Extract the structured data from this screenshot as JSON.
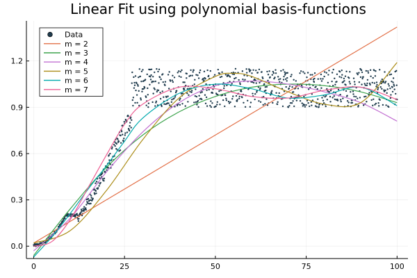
{
  "chart_data": {
    "type": "scatter",
    "title": "Linear Fit using polynomial basis-functions",
    "xlabel": "",
    "ylabel": "",
    "xlim": [
      -2,
      103
    ],
    "ylim": [
      -0.08,
      1.46
    ],
    "x_ticks": [
      0,
      25,
      50,
      75,
      100
    ],
    "x_tick_labels": [
      "0",
      "25",
      "50",
      "75",
      "100"
    ],
    "y_ticks": [
      0.0,
      0.3,
      0.6,
      0.9,
      1.2
    ],
    "y_tick_labels": [
      "0.0",
      "0.3",
      "0.6",
      "0.9",
      "1.2"
    ],
    "grid": true,
    "legend_position": "top-left",
    "scatter": {
      "name": "Data",
      "color": "#1f3b4d",
      "x_range": [
        0,
        100
      ],
      "n_points": 1000,
      "generator": "plateau-with-noise",
      "plateau_levels": [
        0.9,
        1.15
      ]
    },
    "series": [
      {
        "name": "m = 2",
        "color": "#e26f46",
        "x": [
          0,
          100
        ],
        "y": [
          0.02,
          1.42
        ]
      },
      {
        "name": "m = 3",
        "color": "#3da44d",
        "x": [
          0,
          10,
          20,
          30,
          40,
          50,
          60,
          70,
          80,
          90,
          100
        ],
        "y": [
          -0.06,
          0.24,
          0.51,
          0.72,
          0.87,
          0.97,
          1.03,
          1.05,
          1.04,
          1.0,
          0.93
        ]
      },
      {
        "name": "m = 4",
        "color": "#c271d2",
        "x": [
          0,
          10,
          20,
          30,
          40,
          50,
          60,
          70,
          80,
          90,
          100
        ],
        "y": [
          -0.03,
          0.18,
          0.48,
          0.74,
          0.93,
          1.04,
          1.07,
          1.05,
          1.0,
          0.93,
          0.81
        ]
      },
      {
        "name": "m = 5",
        "color": "#ac8d18",
        "x": [
          0,
          10,
          20,
          30,
          40,
          50,
          55,
          60,
          70,
          80,
          90,
          100
        ],
        "y": [
          0.02,
          0.1,
          0.36,
          0.69,
          0.96,
          1.1,
          1.12,
          1.1,
          1.0,
          0.92,
          0.93,
          1.19
        ]
      },
      {
        "name": "m = 6",
        "color": "#00a9ad",
        "x": [
          0,
          5,
          10,
          15,
          20,
          25,
          30,
          40,
          50,
          60,
          70,
          80,
          90,
          100
        ],
        "y": [
          -0.07,
          0.06,
          0.21,
          0.37,
          0.52,
          0.68,
          0.83,
          0.99,
          1.05,
          1.02,
          0.96,
          0.98,
          1.03,
          0.91
        ]
      },
      {
        "name": "m = 7",
        "color": "#ed5d92",
        "x": [
          0,
          5,
          10,
          15,
          20,
          25,
          30,
          40,
          50,
          60,
          70,
          80,
          90,
          100
        ],
        "y": [
          0.0,
          0.03,
          0.17,
          0.38,
          0.59,
          0.79,
          0.92,
          1.03,
          1.02,
          0.97,
          0.96,
          1.01,
          1.03,
          0.95
        ]
      }
    ]
  }
}
